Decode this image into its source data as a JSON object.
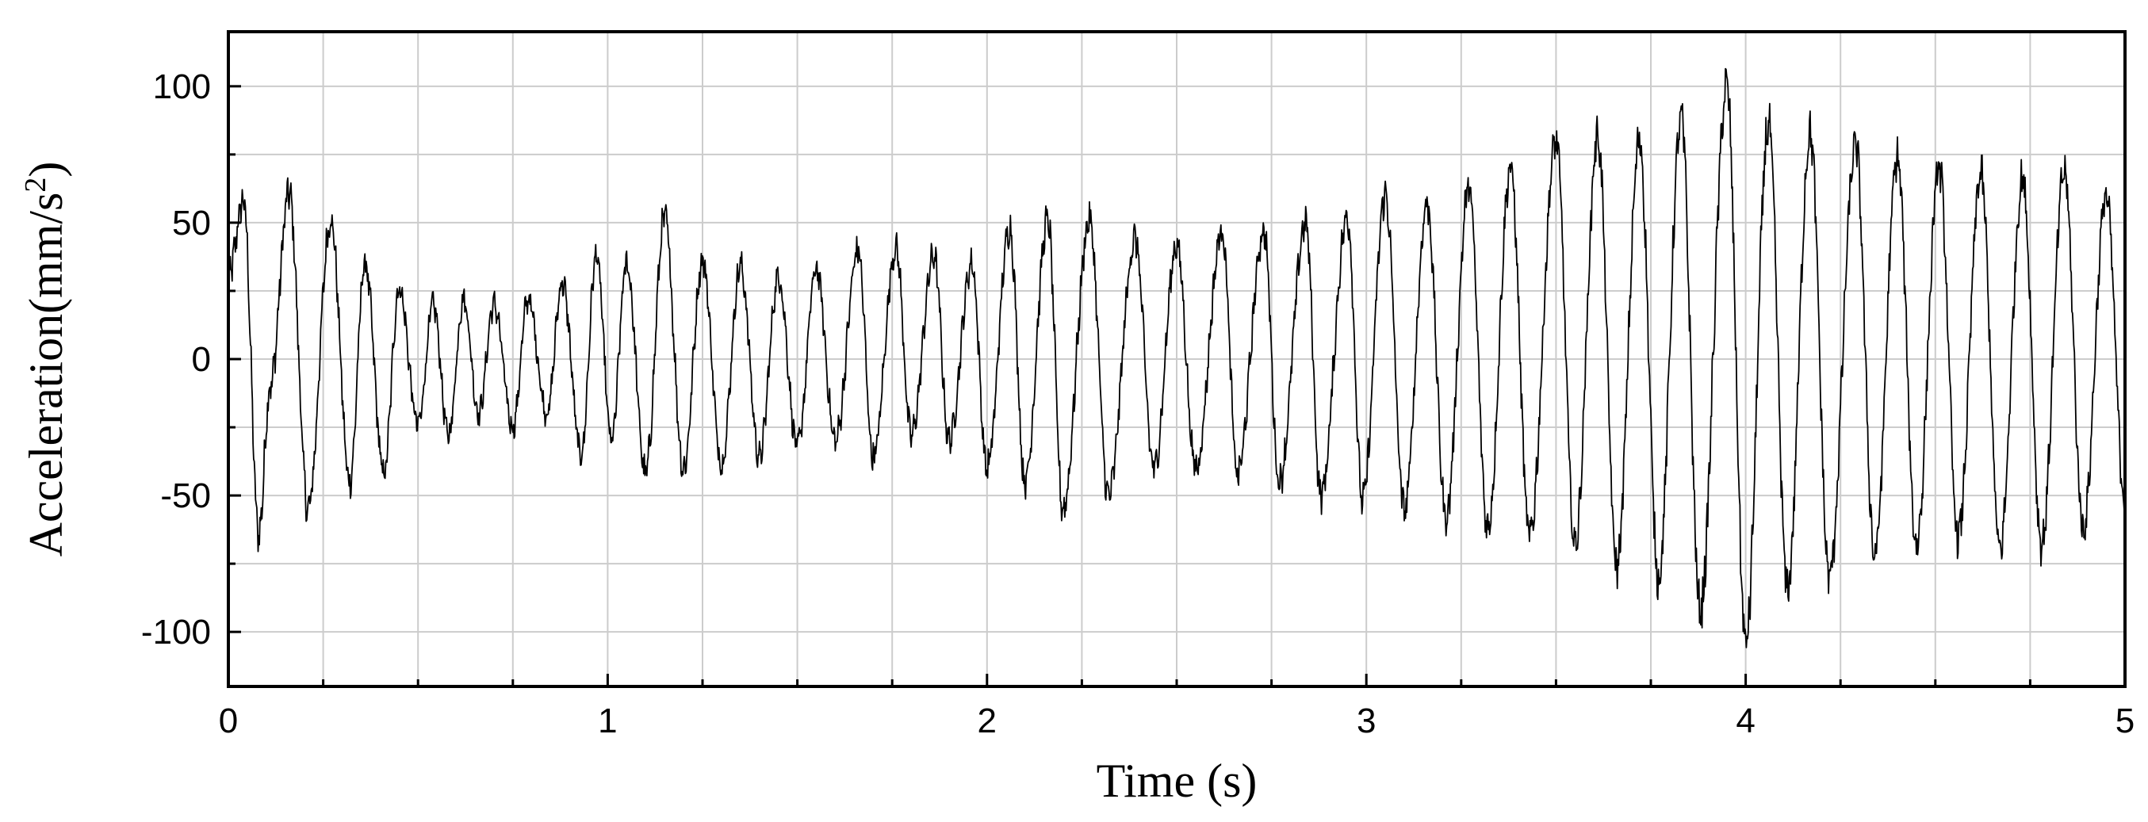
{
  "chart_data": {
    "type": "line",
    "xlabel": "Time (s)",
    "ylabel": "Acceleration(mm/s",
    "ylabel_superscript": "2",
    "ylabel_suffix": ")",
    "xlim": [
      0,
      5
    ],
    "ylim": [
      -120,
      120
    ],
    "x_ticks": [
      0,
      1,
      2,
      3,
      4,
      5
    ],
    "x_tick_labels": [
      "0",
      "1",
      "2",
      "3",
      "4",
      "5"
    ],
    "y_ticks": [
      100,
      50,
      0,
      -50,
      -100
    ],
    "y_tick_labels": [
      "100",
      "50",
      "0",
      "-50",
      "-100"
    ],
    "grid": true,
    "series": [
      {
        "color": "#000000",
        "x": [
          0,
          0.04,
          0.08,
          0.11,
          0.16,
          0.21,
          0.27,
          0.32,
          0.36,
          0.41,
          0.45,
          0.5,
          0.54,
          0.58,
          0.62,
          0.66,
          0.7,
          0.75,
          0.79,
          0.84,
          0.88,
          0.93,
          0.97,
          1.01,
          1.05,
          1.1,
          1.15,
          1.2,
          1.25,
          1.3,
          1.35,
          1.4,
          1.45,
          1.5,
          1.55,
          1.6,
          1.66,
          1.7,
          1.76,
          1.8,
          1.86,
          1.9,
          1.96,
          2.0,
          2.06,
          2.1,
          2.16,
          2.2,
          2.27,
          2.32,
          2.39,
          2.44,
          2.5,
          2.55,
          2.62,
          2.66,
          2.73,
          2.77,
          2.84,
          2.88,
          2.95,
          2.99,
          3.05,
          3.1,
          3.16,
          3.21,
          3.27,
          3.32,
          3.38,
          3.43,
          3.5,
          3.55,
          3.61,
          3.66,
          3.72,
          3.77,
          3.83,
          3.88,
          3.95,
          4.0,
          4.06,
          4.11,
          4.17,
          4.22,
          4.29,
          4.34,
          4.4,
          4.45,
          4.51,
          4.56,
          4.62,
          4.67,
          4.73,
          4.78,
          4.84,
          4.89,
          4.95,
          5.0
        ],
        "y": [
          30,
          58,
          -64,
          -10,
          61,
          -55,
          51,
          -45,
          35,
          -42,
          26,
          -24,
          20,
          -28,
          22,
          -20,
          20,
          -25,
          22,
          -20,
          28,
          -35,
          38,
          -30,
          35,
          -42,
          52,
          -40,
          36,
          -38,
          34,
          -36,
          30,
          -32,
          33,
          -30,
          40,
          -36,
          41,
          -28,
          38,
          -30,
          35,
          -40,
          48,
          -45,
          51,
          -55,
          51,
          -50,
          44,
          -40,
          42,
          -40,
          47,
          -42,
          47,
          -45,
          50,
          -50,
          52,
          -52,
          60,
          -55,
          57,
          -58,
          63,
          -62,
          70,
          -65,
          80,
          -68,
          82,
          -76,
          80,
          -80,
          88,
          -92,
          100,
          -104,
          86,
          -84,
          83,
          -80,
          78,
          -72,
          74,
          -68,
          70,
          -65,
          68,
          -70,
          66,
          -68,
          69,
          -62,
          60,
          -52
        ]
      }
    ]
  }
}
